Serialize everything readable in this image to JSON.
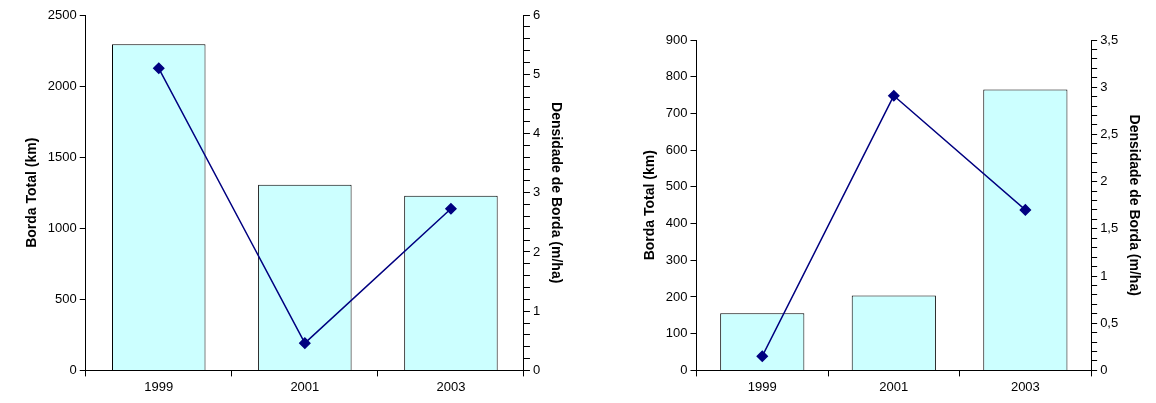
{
  "chart_data": [
    {
      "type": "bar",
      "categories": [
        "1999",
        "2001",
        "2003"
      ],
      "ylabel": "Borda Total (km)",
      "y2label": "Densidade de Borda (m/ha)",
      "ylim": [
        0,
        2500
      ],
      "yticks": [
        0,
        500,
        1000,
        1500,
        2000,
        2500
      ],
      "y2lim": [
        0,
        6
      ],
      "y2ticks": [
        0,
        {
          "value": 0.2,
          "label": null
        },
        {
          "value": 0.4,
          "label": null
        },
        {
          "value": 0.6,
          "label": null
        },
        {
          "value": 0.8,
          "label": null
        },
        1,
        {
          "value": 1.2,
          "label": null
        },
        {
          "value": 1.4,
          "label": null
        },
        {
          "value": 1.6,
          "label": null
        },
        {
          "value": 1.8,
          "label": null
        },
        2,
        {
          "value": 2.2,
          "label": null
        },
        {
          "value": 2.4,
          "label": null
        },
        {
          "value": 2.6,
          "label": null
        },
        {
          "value": 2.8,
          "label": null
        },
        3,
        {
          "value": 3.2,
          "label": null
        },
        {
          "value": 3.4,
          "label": null
        },
        {
          "value": 3.6,
          "label": null
        },
        {
          "value": 3.8,
          "label": null
        },
        4,
        {
          "value": 4.2,
          "label": null
        },
        {
          "value": 4.4,
          "label": null
        },
        {
          "value": 4.6,
          "label": null
        },
        {
          "value": 4.8,
          "label": null
        },
        5,
        {
          "value": 5.2,
          "label": null
        },
        {
          "value": 5.4,
          "label": null
        },
        {
          "value": 5.6,
          "label": null
        },
        {
          "value": 5.8,
          "label": null
        },
        6
      ],
      "grid": false,
      "legend": false,
      "series": [
        {
          "color": "#ccffff",
          "values": [
            2295,
            1306,
            1228
          ]
        },
        {
          "type": "line",
          "axis": "y2",
          "color": "#000080",
          "marker": "diamond",
          "line_style": "solid",
          "values": [
            5.1,
            0.46,
            2.73
          ]
        }
      ]
    },
    {
      "type": "bar",
      "categories": [
        "1999",
        "2001",
        "2003"
      ],
      "ylabel": "Borda Total (km)",
      "y2label": "Densidade de Borda (m/ha)",
      "ylim": [
        0,
        900
      ],
      "yticks": [
        0,
        100,
        200,
        300,
        400,
        500,
        600,
        700,
        800,
        900
      ],
      "y2lim": [
        0,
        3.5
      ],
      "y2ticks": [
        0,
        {
          "value": 0.1,
          "label": null
        },
        {
          "value": 0.2,
          "label": null
        },
        {
          "value": 0.3,
          "label": null
        },
        {
          "value": 0.4,
          "label": null
        },
        {
          "value": 0.5,
          "label": "0,5"
        },
        {
          "value": 0.6,
          "label": null
        },
        {
          "value": 0.7,
          "label": null
        },
        {
          "value": 0.8,
          "label": null
        },
        {
          "value": 0.9,
          "label": null
        },
        1,
        {
          "value": 1.1,
          "label": null
        },
        {
          "value": 1.2,
          "label": null
        },
        {
          "value": 1.3,
          "label": null
        },
        {
          "value": 1.4,
          "label": null
        },
        {
          "value": 1.5,
          "label": "1,5"
        },
        {
          "value": 1.6,
          "label": null
        },
        {
          "value": 1.7,
          "label": null
        },
        {
          "value": 1.8,
          "label": null
        },
        {
          "value": 1.9,
          "label": null
        },
        2,
        {
          "value": 2.1,
          "label": null
        },
        {
          "value": 2.2,
          "label": null
        },
        {
          "value": 2.3,
          "label": null
        },
        {
          "value": 2.4,
          "label": null
        },
        {
          "value": 2.5,
          "label": "2,5"
        },
        {
          "value": 2.6,
          "label": null
        },
        {
          "value": 2.7,
          "label": null
        },
        {
          "value": 2.8,
          "label": null
        },
        {
          "value": 2.9,
          "label": null
        },
        3,
        {
          "value": 3.1,
          "label": null
        },
        {
          "value": 3.2,
          "label": null
        },
        {
          "value": 3.3,
          "label": null
        },
        {
          "value": 3.4,
          "label": null
        },
        {
          "value": 3.5,
          "label": "3,5"
        }
      ],
      "grid": false,
      "legend": false,
      "series": [
        {
          "color": "#ccffff",
          "values": [
            156,
            204,
            765
          ]
        },
        {
          "type": "line",
          "axis": "y2",
          "color": "#000080",
          "marker": "diamond",
          "line_style": "solid",
          "values": [
            0.15,
            2.91,
            1.7
          ]
        }
      ]
    }
  ]
}
